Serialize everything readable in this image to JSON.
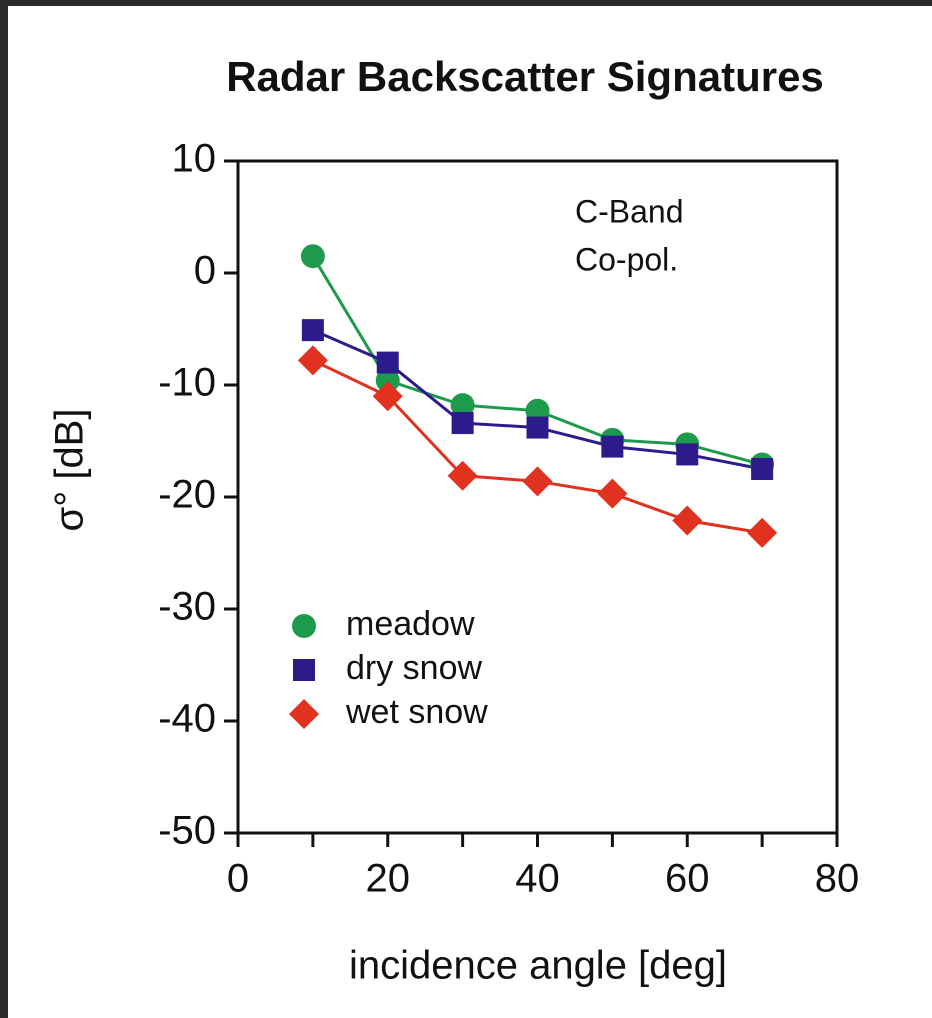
{
  "chart_data": {
    "type": "line",
    "title": "Radar Backscatter Signatures",
    "x_label": "incidence angle [deg]",
    "y_label": "σ° [dB]",
    "annotation": [
      "C-Band",
      "Co-pol."
    ],
    "x": [
      10,
      20,
      30,
      40,
      50,
      60,
      70
    ],
    "series": [
      {
        "name": "meadow",
        "color": "#1e9a4c",
        "marker": "circle",
        "values": [
          1.5,
          -9.6,
          -11.8,
          -12.3,
          -14.9,
          -15.3,
          -17.1
        ]
      },
      {
        "name": "dry snow",
        "color": "#2d1b8c",
        "marker": "square",
        "values": [
          -5.1,
          -8.0,
          -13.4,
          -13.8,
          -15.5,
          -16.2,
          -17.5
        ]
      },
      {
        "name": "wet snow",
        "color": "#e0321e",
        "marker": "diamond",
        "values": [
          -7.8,
          -11.0,
          -18.1,
          -18.6,
          -19.7,
          -22.1,
          -23.2
        ]
      }
    ],
    "xlim": [
      0,
      80
    ],
    "xticks": [
      0,
      20,
      40,
      60,
      80
    ],
    "xminorticks": [
      10,
      30,
      50,
      70
    ],
    "ylim": [
      -50,
      10
    ],
    "yticks": [
      10,
      0,
      -10,
      -20,
      -30,
      -40,
      -50
    ],
    "grid": false,
    "legend": "center left"
  }
}
